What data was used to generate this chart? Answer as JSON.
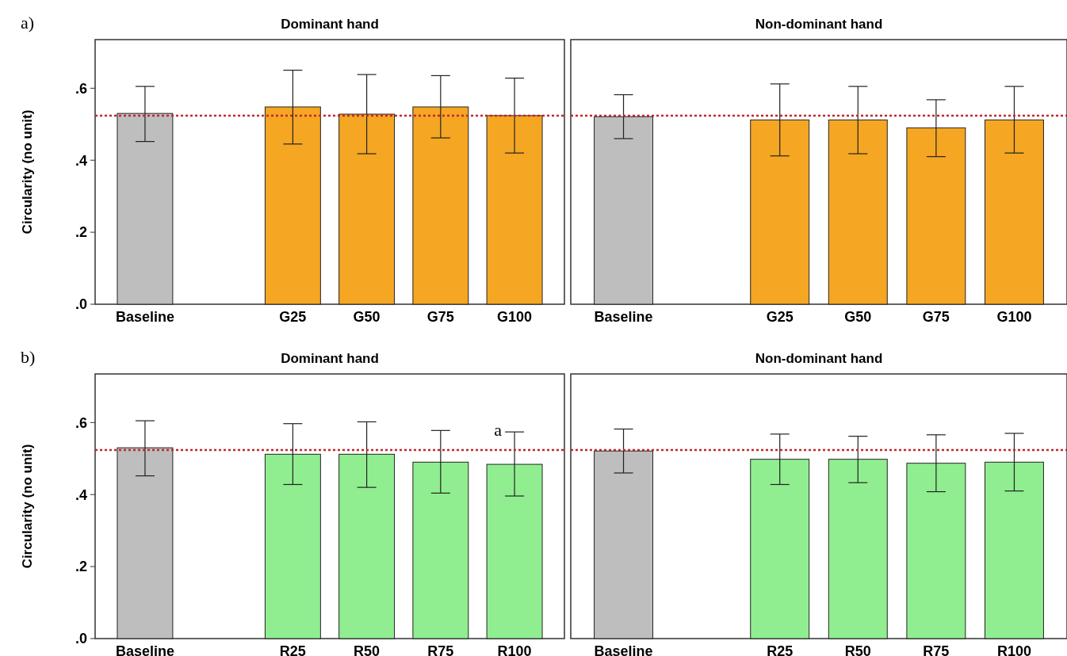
{
  "chart_data": [
    {
      "type": "bar",
      "title": "Dominant hand",
      "ylabel": "Circularity (no unit)",
      "annotations": [
        "a)"
      ],
      "categories": [
        "Baseline",
        null,
        "G25",
        "G50",
        "G75",
        "G100"
      ],
      "values": [
        0.53,
        0,
        0.548,
        0.528,
        0.548,
        0.524
      ],
      "colors": [
        "#bebebe",
        "#bebebe",
        "#f5a623",
        "#f5a623",
        "#f5a623",
        "#f5a623"
      ],
      "errors": [
        [
          0.452,
          0.605
        ],
        null,
        [
          0.445,
          0.65
        ],
        [
          0.418,
          0.638
        ],
        [
          0.462,
          0.635
        ],
        [
          0.42,
          0.628
        ]
      ],
      "ylim": [
        0,
        0.735
      ],
      "yticks": [
        {
          "value": 0,
          "label": ".0"
        },
        {
          "value": 0.2,
          "label": ".2"
        },
        {
          "value": 0.4,
          "label": ".4"
        },
        {
          "value": 0.6,
          "label": ".6"
        }
      ],
      "ref_lines": [
        {
          "axis": "y",
          "value": 0.524,
          "label": null,
          "color": "#c0282d",
          "line_style": "dotted"
        }
      ]
    },
    {
      "type": "bar",
      "title": "Non-dominant hand",
      "tick_labels": "x",
      "categories": [
        "Baseline",
        null,
        "G25",
        "G50",
        "G75",
        "G100"
      ],
      "values": [
        0.521,
        null,
        0.512,
        0.512,
        0.49,
        0.512
      ],
      "colors": [
        "#bebebe",
        null,
        "#f5a623",
        "#f5a623",
        "#f5a623",
        "#f5a623"
      ],
      "errors": [
        [
          0.46,
          0.582
        ],
        null,
        [
          0.412,
          0.612
        ],
        [
          0.418,
          0.605
        ],
        [
          0.41,
          0.568
        ],
        [
          0.42,
          0.605
        ]
      ],
      "ylim": [
        0,
        0.735
      ],
      "ref_lines": [
        {
          "axis": "y",
          "value": 0.524,
          "label": null,
          "color": "#c0282d",
          "line_style": "dotted"
        }
      ]
    },
    {
      "type": "bar",
      "title": "Dominant hand",
      "ylabel": "Circularity (no unit)",
      "annotations": [
        "b)",
        {
          "text": "a",
          "x": "R100",
          "y": 0.573
        }
      ],
      "categories": [
        "Baseline",
        null,
        "R25",
        "R50",
        "R75",
        "R100"
      ],
      "values": [
        0.53,
        0,
        0.512,
        0.512,
        0.49,
        0.484
      ],
      "colors": [
        "#bebebe",
        "#bebebe",
        "#90ee90",
        "#90ee90",
        "#90ee90",
        "#90ee90"
      ],
      "errors": [
        [
          0.452,
          0.605
        ],
        null,
        [
          0.428,
          0.597
        ],
        [
          0.42,
          0.602
        ],
        [
          0.404,
          0.578
        ],
        [
          0.396,
          0.574
        ]
      ],
      "ylim": [
        0,
        0.735
      ],
      "yticks": [
        {
          "value": 0,
          "label": ".0"
        },
        {
          "value": 0.2,
          "label": ".2"
        },
        {
          "value": 0.4,
          "label": ".4"
        },
        {
          "value": 0.6,
          "label": ".6"
        }
      ],
      "ref_lines": [
        {
          "axis": "y",
          "value": 0.524,
          "label": null,
          "color": "#c0282d",
          "line_style": "dotted"
        }
      ]
    },
    {
      "type": "bar",
      "title": "Non-dominant hand",
      "tick_labels": "x",
      "categories": [
        "Baseline",
        null,
        "R25",
        "R50",
        "R75",
        "R100"
      ],
      "values": [
        0.521,
        null,
        0.498,
        0.498,
        0.487,
        0.49
      ],
      "colors": [
        "#bebebe",
        null,
        "#90ee90",
        "#90ee90",
        "#90ee90",
        "#90ee90"
      ],
      "errors": [
        [
          0.46,
          0.582
        ],
        null,
        [
          0.428,
          0.568
        ],
        [
          0.433,
          0.562
        ],
        [
          0.408,
          0.566
        ],
        [
          0.41,
          0.57
        ]
      ],
      "ylim": [
        0,
        0.735
      ],
      "ref_lines": [
        {
          "axis": "y",
          "value": 0.524,
          "label": null,
          "color": "#c0282d",
          "line_style": "dotted"
        }
      ]
    }
  ]
}
